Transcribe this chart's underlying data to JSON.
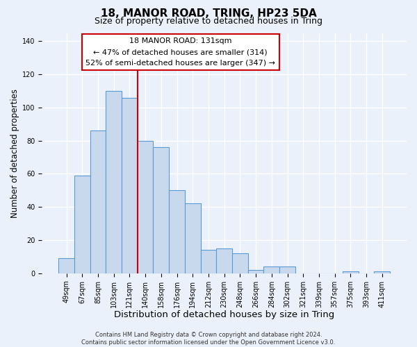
{
  "title": "18, MANOR ROAD, TRING, HP23 5DA",
  "subtitle": "Size of property relative to detached houses in Tring",
  "xlabel": "Distribution of detached houses by size in Tring",
  "ylabel": "Number of detached properties",
  "bar_labels": [
    "49sqm",
    "67sqm",
    "85sqm",
    "103sqm",
    "121sqm",
    "140sqm",
    "158sqm",
    "176sqm",
    "194sqm",
    "212sqm",
    "230sqm",
    "248sqm",
    "266sqm",
    "284sqm",
    "302sqm",
    "321sqm",
    "339sqm",
    "357sqm",
    "375sqm",
    "393sqm",
    "411sqm"
  ],
  "bar_values": [
    9,
    59,
    86,
    110,
    106,
    80,
    76,
    50,
    42,
    14,
    15,
    12,
    2,
    4,
    4,
    0,
    0,
    0,
    1,
    0,
    1
  ],
  "bar_color": "#c9d9ed",
  "bar_edge_color": "#5b9bd5",
  "vline_color": "#cc0000",
  "vline_x_index": 4.5,
  "annotation_text_line1": "18 MANOR ROAD: 131sqm",
  "annotation_text_line2": "← 47% of detached houses are smaller (314)",
  "annotation_text_line3": "52% of semi-detached houses are larger (347) →",
  "annotation_box_edgecolor": "#cc0000",
  "ylim": [
    0,
    145
  ],
  "yticks": [
    0,
    20,
    40,
    60,
    80,
    100,
    120,
    140
  ],
  "bg_color": "#eaf1fb",
  "grid_color": "#ffffff",
  "footnote": "Contains HM Land Registry data © Crown copyright and database right 2024.\nContains public sector information licensed under the Open Government Licence v3.0.",
  "title_fontsize": 11,
  "subtitle_fontsize": 9,
  "xlabel_fontsize": 9.5,
  "ylabel_fontsize": 8.5,
  "tick_fontsize": 7,
  "annotation_fontsize": 8,
  "footnote_fontsize": 6
}
